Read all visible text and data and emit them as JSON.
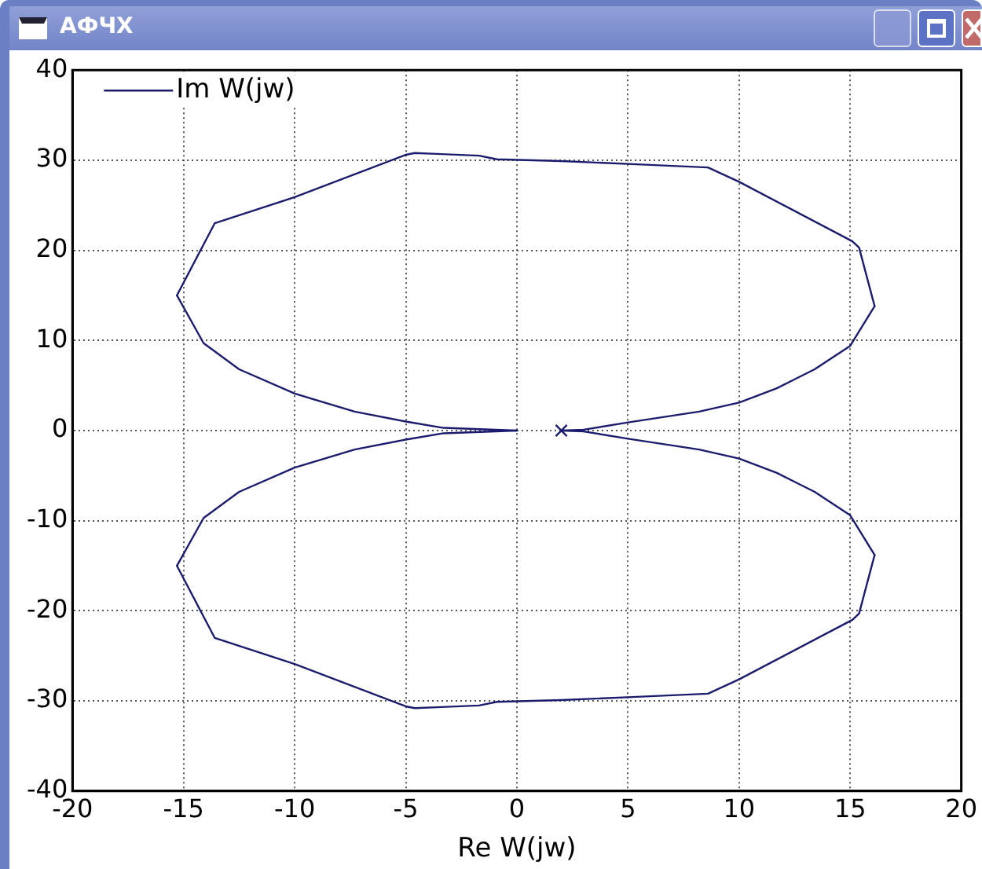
{
  "chart_data": {
    "type": "line",
    "title": "АФЧХ",
    "xlabel": "Re W(jw)",
    "xlim": [
      -20,
      20
    ],
    "xticks": [
      -20,
      -15,
      -10,
      -5,
      0,
      5,
      10,
      15,
      20
    ],
    "ylim": [
      -40,
      40
    ],
    "yticks": [
      -40,
      -30,
      -20,
      -10,
      0,
      10,
      20,
      30,
      40
    ],
    "grid": true,
    "legend": "top left",
    "series": [
      {
        "name": "Im W(jw)",
        "type": "line",
        "color": "#1c1c6e",
        "marker": "none",
        "line_style": "solid",
        "x": [
          2,
          3,
          5,
          8.2,
          10,
          11.7,
          13.4,
          15,
          16.1
        ],
        "values": [
          0,
          0.1,
          0.9,
          2.1,
          3.1,
          4.7,
          6.8,
          9.4,
          13.8
        ]
      },
      {
        "type": "line",
        "color": "#1c1c6e",
        "marker": "none",
        "line_style": "solid",
        "x": [
          16.1,
          15.4,
          15.1,
          10,
          8.6,
          5.8,
          2,
          -0.9,
          -1.7,
          -3.6,
          -4.6,
          -5,
          -10,
          -13.6,
          -15.3
        ],
        "values": [
          13.8,
          20.3,
          21,
          27.6,
          29.2,
          29.5,
          29.9,
          30.1,
          30.5,
          30.7,
          30.8,
          30.6,
          25.9,
          23,
          15
        ]
      },
      {
        "type": "line",
        "color": "#1c1c6e",
        "marker": "none",
        "line_style": "solid",
        "x": [
          -15.3,
          -14.1,
          -12.5,
          -10,
          -7.3,
          -5,
          -3.3,
          0
        ],
        "values": [
          15,
          9.7,
          6.8,
          4.1,
          2.1,
          1,
          0.3,
          0
        ]
      },
      {
        "type": "line",
        "color": "#1c1c6e",
        "marker": "none",
        "line_style": "solid",
        "x": [
          0,
          -3.3,
          -5,
          -7.3,
          -10,
          -12.5,
          -14.1,
          -15.3
        ],
        "values": [
          0,
          -0.3,
          -1,
          -2.1,
          -4.1,
          -6.8,
          -9.7,
          -15
        ]
      },
      {
        "type": "line",
        "color": "#1c1c6e",
        "marker": "none",
        "line_style": "solid",
        "x": [
          -15.3,
          -13.6,
          -10,
          -5,
          -4.6,
          -3.6,
          -1.7,
          -0.9,
          2,
          5.8,
          8.6,
          10,
          15.1,
          15.4,
          16.1
        ],
        "values": [
          -15,
          -23,
          -25.9,
          -30.6,
          -30.8,
          -30.7,
          -30.5,
          -30.1,
          -29.9,
          -29.5,
          -29.2,
          -27.6,
          -21,
          -20.3,
          -13.8
        ]
      },
      {
        "type": "line",
        "color": "#1c1c6e",
        "marker": "none",
        "line_style": "solid",
        "x": [
          16.1,
          15,
          13.4,
          11.7,
          10,
          8.2,
          5,
          3,
          2
        ],
        "values": [
          -13.8,
          -9.4,
          -6.8,
          -4.7,
          -3.1,
          -2.1,
          -0.9,
          -0.1,
          0
        ]
      },
      {
        "type": "scatter",
        "color": "#1c1c6e",
        "marker": "cross",
        "x": [
          2
        ],
        "values": [
          0
        ]
      }
    ]
  }
}
